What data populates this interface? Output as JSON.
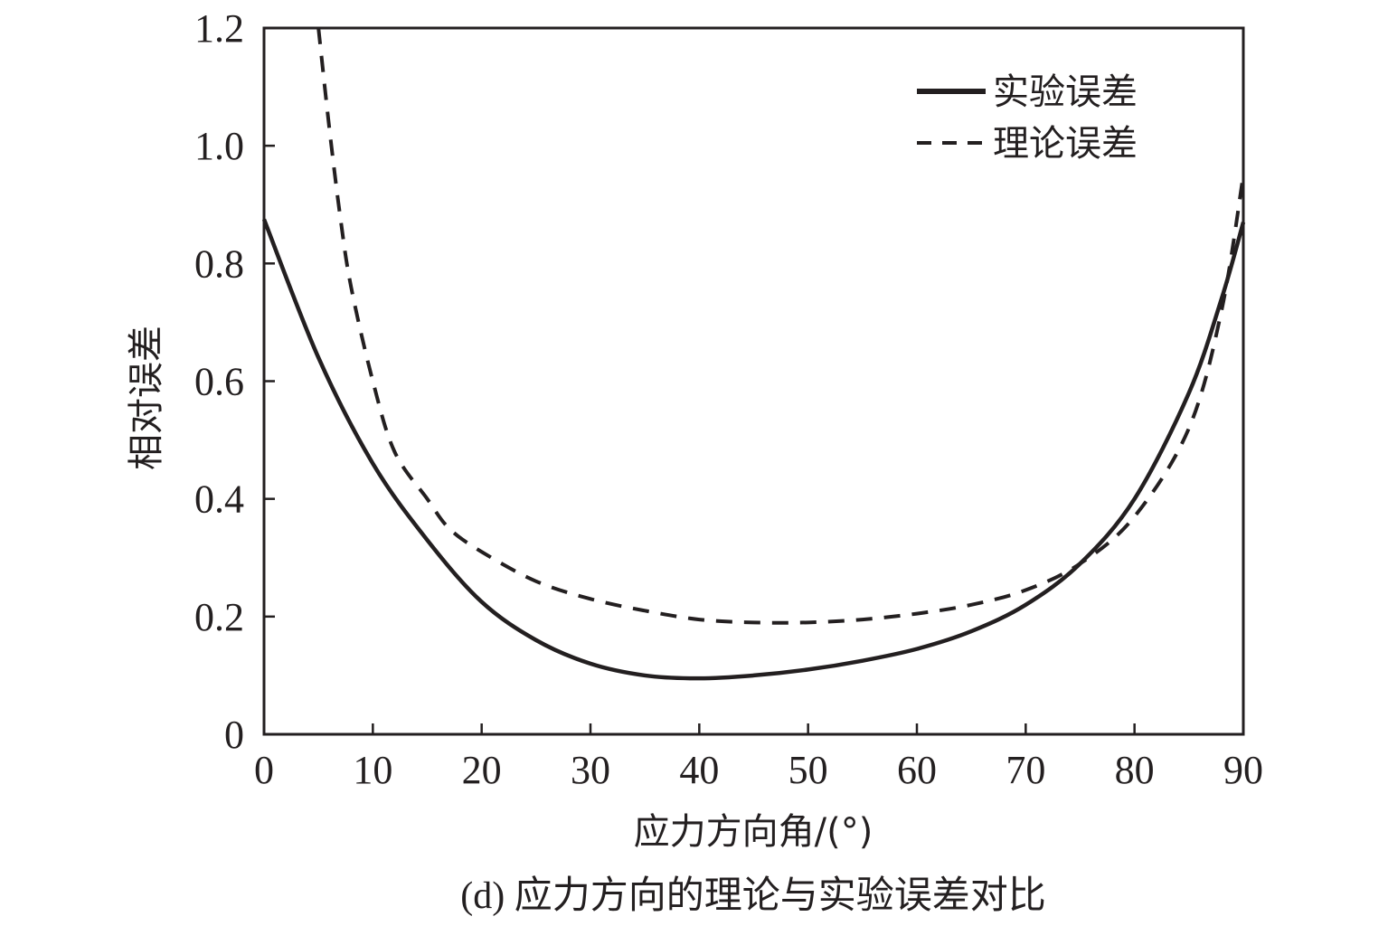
{
  "chart_data": {
    "type": "line",
    "title": "",
    "caption": "(d) 应力方向的理论与实验误差对比",
    "xlabel": "应力方向角/(°)",
    "ylabel": "相对误差",
    "xlim": [
      0,
      90
    ],
    "ylim": [
      0,
      1.2
    ],
    "xticks": [
      0,
      10,
      20,
      30,
      40,
      50,
      60,
      70,
      80,
      90
    ],
    "xtick_labels": [
      "0",
      "10",
      "20",
      "30",
      "40",
      "50",
      "60",
      "70",
      "80",
      "90"
    ],
    "yticks": [
      0,
      0.2,
      0.4,
      0.6,
      0.8,
      1.0,
      1.2
    ],
    "ytick_labels": [
      "0",
      "0.2",
      "0.4",
      "0.6",
      "0.8",
      "1.0",
      "1.2"
    ],
    "grid": false,
    "legend_position": "top-right",
    "series": [
      {
        "name": "实验误差",
        "style": "solid",
        "color": "#231f20",
        "x": [
          0,
          5,
          10,
          15,
          20,
          25,
          30,
          35,
          40,
          45,
          50,
          55,
          60,
          65,
          70,
          75,
          80,
          85,
          88,
          90
        ],
        "y": [
          0.875,
          0.64,
          0.46,
          0.33,
          0.225,
          0.16,
          0.12,
          0.1,
          0.095,
          0.1,
          0.11,
          0.125,
          0.145,
          0.175,
          0.22,
          0.29,
          0.4,
          0.58,
          0.74,
          0.87
        ]
      },
      {
        "name": "理论误差",
        "style": "dashed",
        "color": "#231f20",
        "x": [
          5,
          6,
          7,
          8,
          10,
          12,
          15,
          17,
          20,
          25,
          30,
          35,
          40,
          45,
          50,
          55,
          60,
          65,
          70,
          75,
          80,
          85,
          88,
          90
        ],
        "y": [
          1.2,
          1.03,
          0.88,
          0.76,
          0.6,
          0.48,
          0.4,
          0.35,
          0.31,
          0.26,
          0.23,
          0.21,
          0.195,
          0.19,
          0.19,
          0.195,
          0.205,
          0.22,
          0.245,
          0.29,
          0.37,
          0.52,
          0.72,
          0.95
        ]
      }
    ]
  }
}
